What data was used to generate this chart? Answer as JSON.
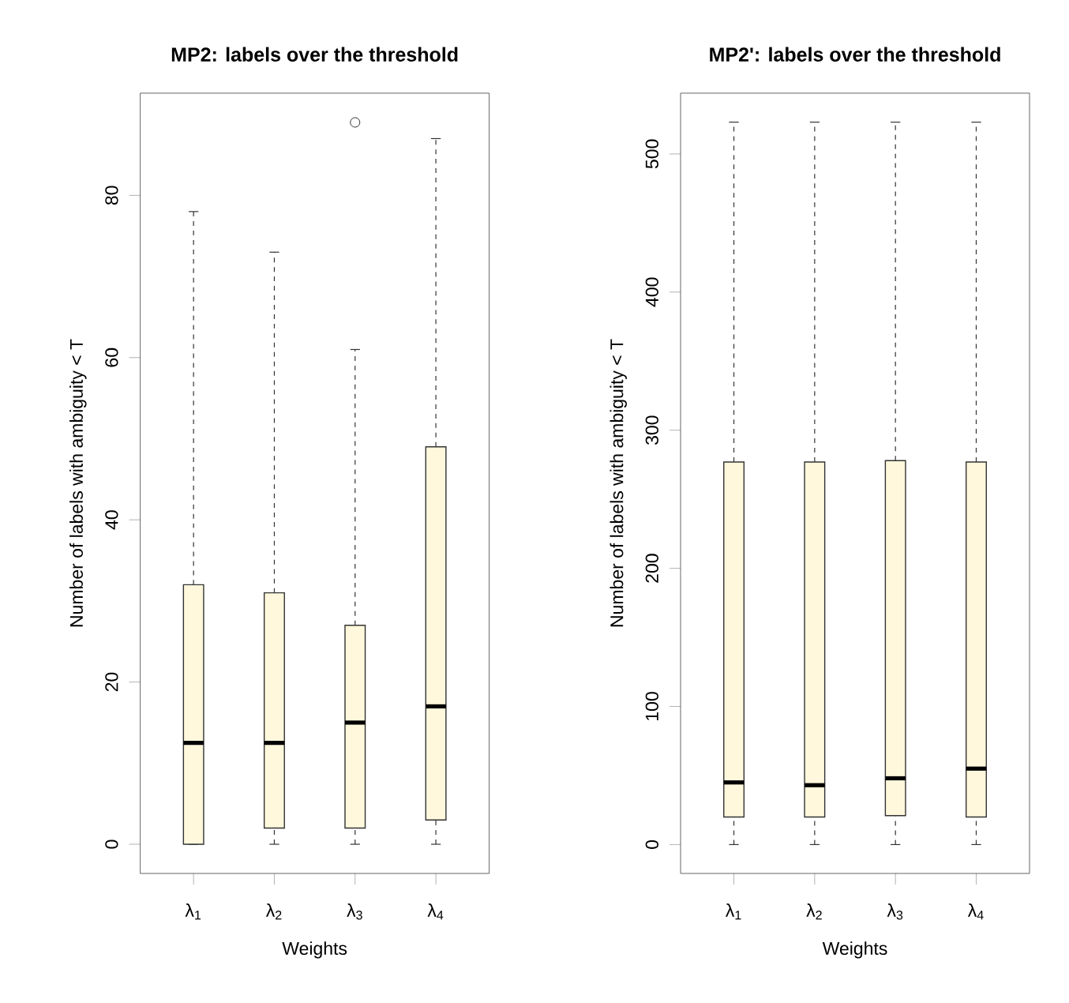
{
  "chart_data": [
    {
      "type": "box",
      "title": "**MP2: labels over the threshold**",
      "xlabel": "Weights",
      "ylabel": "Number of labels with ambiguity < T",
      "categories": [
        "λ$_{1}$",
        "λ$_{2}$",
        "λ$_{3}$",
        "λ$_{4}$"
      ],
      "ylim": [
        -3.6,
        92.6
      ],
      "yticks": [
        0,
        20,
        40,
        60,
        80
      ],
      "series": [
        {
          "color": "#fff8dc",
          "boxes": [
            {
              "low": 0,
              "q1": 0,
              "median": 12.5,
              "q3": 32,
              "high": 78
            },
            {
              "low": 0,
              "q1": 2,
              "median": 12.5,
              "q3": 31,
              "high": 73
            },
            {
              "low": 0,
              "q1": 2,
              "median": 15,
              "q3": 27,
              "high": 61,
              "outliers": [
                89
              ]
            },
            {
              "low": 0,
              "q1": 3,
              "median": 17,
              "q3": 49,
              "high": 87
            }
          ]
        }
      ]
    },
    {
      "type": "box",
      "title": "**MP2': labels over the threshold**",
      "xlabel": "Weights",
      "ylabel": "Number of labels with ambiguity < T",
      "categories": [
        "λ$_{1}$",
        "λ$_{2}$",
        "λ$_{3}$",
        "λ$_{4}$"
      ],
      "ylim": [
        -20.9,
        544
      ],
      "yticks": [
        0,
        100,
        200,
        300,
        400,
        500
      ],
      "series": [
        {
          "color": "#fff8dc",
          "boxes": [
            {
              "low": 0,
              "q1": 20,
              "median": 45,
              "q3": 277,
              "high": 523
            },
            {
              "low": 0,
              "q1": 20,
              "median": 43,
              "q3": 277,
              "high": 523
            },
            {
              "low": 0,
              "q1": 21,
              "median": 48,
              "q3": 278,
              "high": 523
            },
            {
              "low": 0,
              "q1": 20,
              "median": 55,
              "q3": 277,
              "high": 523
            }
          ]
        }
      ]
    }
  ]
}
